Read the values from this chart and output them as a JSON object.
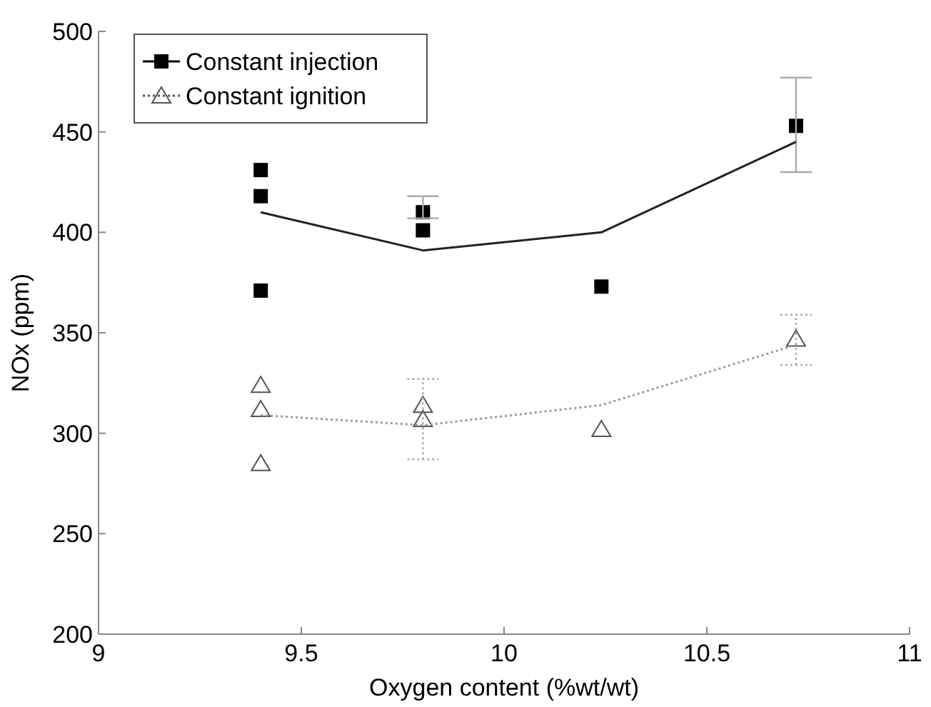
{
  "chart_data": {
    "type": "scatter",
    "xlabel": "Oxygen content (%wt/wt)",
    "ylabel": "NOx (ppm)",
    "xlim": [
      9,
      11
    ],
    "xticks": [
      9,
      9.5,
      10,
      10.5,
      11
    ],
    "ylim": [
      200,
      500
    ],
    "yticks": [
      200,
      250,
      300,
      350,
      400,
      450,
      500
    ],
    "grid": false,
    "legend": "top left",
    "series": [
      {
        "name": "Constant injection",
        "marker": "square",
        "color": "#000000",
        "line_style": "solid",
        "x": [
          9.4,
          9.4,
          9.4,
          9.8,
          9.8,
          10.24,
          10.72
        ],
        "values": [
          431,
          418,
          371,
          410,
          401,
          373,
          453
        ]
      },
      {
        "name": "Constant ignition",
        "marker": "triangle",
        "color": "#555555",
        "line_style": "dotted",
        "x": [
          9.4,
          9.4,
          9.4,
          9.8,
          9.8,
          10.24,
          10.72
        ],
        "values": [
          324,
          312,
          285,
          314,
          307,
          302,
          347
        ]
      },
      {
        "type": "line",
        "marker": "none",
        "color": "#222222",
        "line_style": "solid",
        "x": [
          9.4,
          9.8,
          10.24,
          10.72
        ],
        "values": [
          410,
          391,
          400,
          445
        ],
        "errors": [
          null,
          [
            407,
            418
          ],
          null,
          [
            430,
            477
          ]
        ]
      },
      {
        "type": "line",
        "marker": "none",
        "color": "#999999",
        "line_style": "dotted",
        "x": [
          9.4,
          9.8,
          10.24,
          10.72
        ],
        "values": [
          309,
          304,
          314,
          344
        ],
        "errors": [
          null,
          [
            287,
            327
          ],
          null,
          [
            334,
            359
          ]
        ]
      }
    ]
  }
}
